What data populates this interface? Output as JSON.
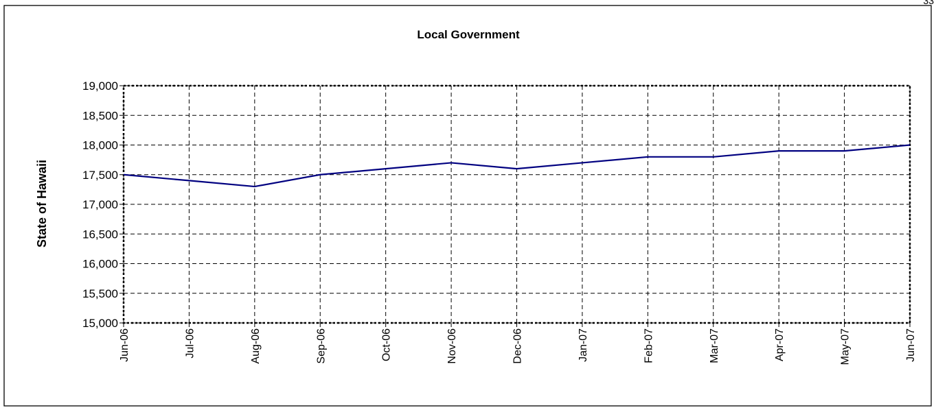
{
  "chart_data": {
    "type": "line",
    "title": "Local Government",
    "ylabel": "State of Hawaii",
    "xlabel": "",
    "categories": [
      "Jun-06",
      "Jul-06",
      "Aug-06",
      "Sep-06",
      "Oct-06",
      "Nov-06",
      "Dec-06",
      "Jan-07",
      "Feb-07",
      "Mar-07",
      "Apr-07",
      "May-07",
      "Jun-07"
    ],
    "series": [
      {
        "values": [
          17500,
          17400,
          17300,
          17500,
          17600,
          17700,
          17600,
          17700,
          17800,
          17800,
          17900,
          17900,
          18000
        ],
        "color": "#000080"
      }
    ],
    "ylim": [
      15000,
      19000
    ],
    "yticks": [
      15000,
      15500,
      16000,
      16500,
      17000,
      17500,
      18000,
      18500,
      19000
    ],
    "ytick_labels": [
      "15,000",
      "15,500",
      "16,000",
      "16,500",
      "17,000",
      "17,500",
      "18,000",
      "18,500",
      "19,000"
    ],
    "grid": true,
    "legend": "none"
  },
  "page": {
    "corner_mark": "33"
  }
}
